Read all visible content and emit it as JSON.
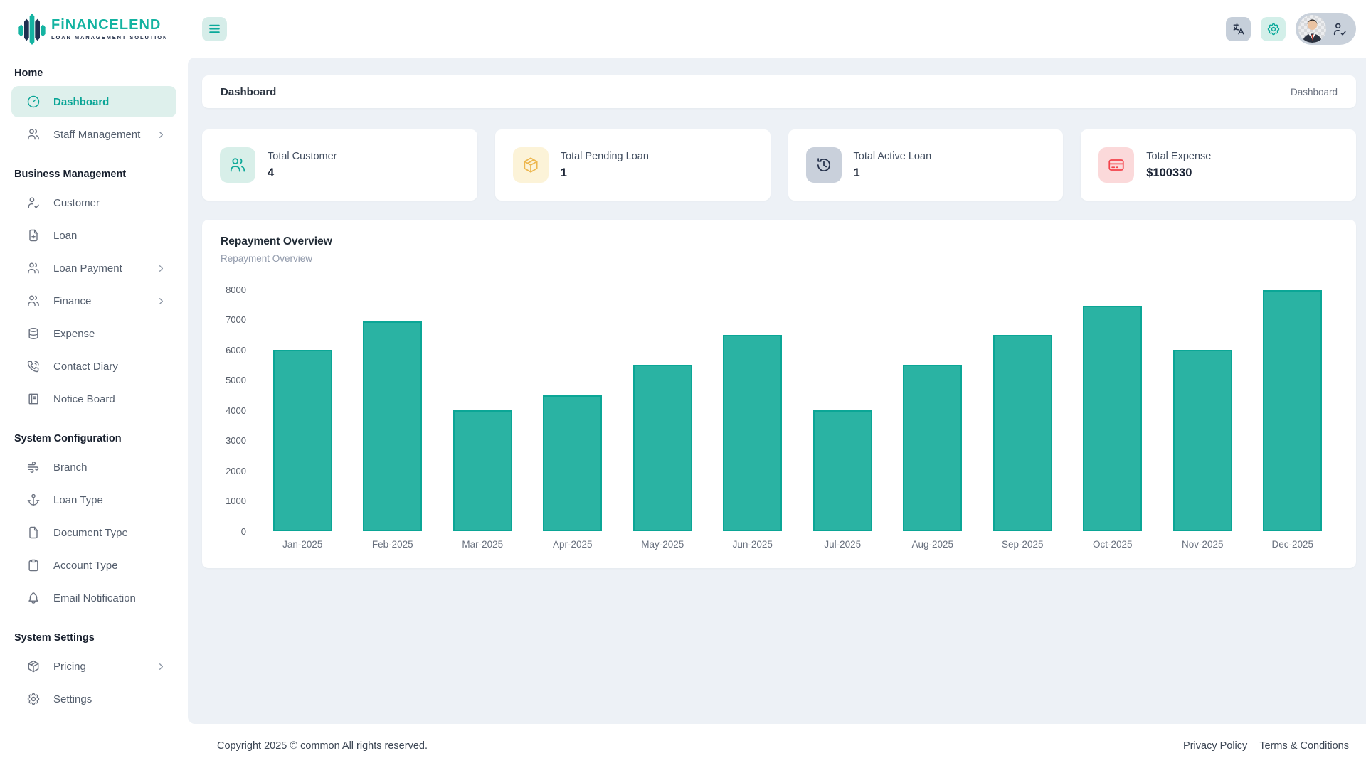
{
  "theme": {
    "accent": "#0aa99a",
    "accent_soft": "#d7eee9",
    "panel_bg": "#edf1f6",
    "navy": "#24304a",
    "bar_fill": "#2ab3a3",
    "bar_stroke": "#0ba696"
  },
  "brand": {
    "name": "FiNANCELEND",
    "tagline": "LOAN MANAGEMENT SOLUTION"
  },
  "sidebar": {
    "sections": [
      {
        "title": "Home",
        "items": [
          {
            "label": "Dashboard",
            "icon": "dashboard-icon",
            "active": true
          },
          {
            "label": "Staff Management",
            "icon": "users-icon",
            "chevron": true
          }
        ]
      },
      {
        "title": "Business Management",
        "items": [
          {
            "label": "Customer",
            "icon": "user-check-icon"
          },
          {
            "label": "Loan",
            "icon": "file-plus-icon"
          },
          {
            "label": "Loan Payment",
            "icon": "users-icon",
            "chevron": true
          },
          {
            "label": "Finance",
            "icon": "users-icon",
            "chevron": true
          },
          {
            "label": "Expense",
            "icon": "database-icon"
          },
          {
            "label": "Contact Diary",
            "icon": "phone-call-icon"
          },
          {
            "label": "Notice Board",
            "icon": "notebook-icon"
          }
        ]
      },
      {
        "title": "System Configuration",
        "items": [
          {
            "label": "Branch",
            "icon": "wind-icon"
          },
          {
            "label": "Loan Type",
            "icon": "anchor-icon"
          },
          {
            "label": "Document Type",
            "icon": "file-icon"
          },
          {
            "label": "Account Type",
            "icon": "clipboard-icon"
          },
          {
            "label": "Email Notification",
            "icon": "bell-icon"
          }
        ]
      },
      {
        "title": "System Settings",
        "items": [
          {
            "label": "Pricing",
            "icon": "package-icon",
            "chevron": true
          },
          {
            "label": "Settings",
            "icon": "gear-icon"
          }
        ]
      }
    ]
  },
  "page_header": {
    "title": "Dashboard",
    "breadcrumb": "Dashboard"
  },
  "stats": [
    {
      "label": "Total Customer",
      "value": "4",
      "icon": "users-icon",
      "icon_color": "#0fa999",
      "icon_bg": "#d8efe9"
    },
    {
      "label": "Total Pending Loan",
      "value": "1",
      "icon": "package-icon",
      "icon_color": "#edb74f",
      "icon_bg": "#fcf3d8"
    },
    {
      "label": "Total Active Loan",
      "value": "1",
      "icon": "history-icon",
      "icon_color": "#232f49",
      "icon_bg": "#c9d0db"
    },
    {
      "label": "Total Expense",
      "value": "$100330",
      "icon": "credit-card-icon",
      "icon_color": "#f4424b",
      "icon_bg": "#fbd9da"
    }
  ],
  "chart_data": {
    "type": "bar",
    "title": "Repayment Overview",
    "subtitle": "Repayment Overview",
    "categories": [
      "Jan-2025",
      "Feb-2025",
      "Mar-2025",
      "Apr-2025",
      "May-2025",
      "Jun-2025",
      "Jul-2025",
      "Aug-2025",
      "Sep-2025",
      "Oct-2025",
      "Nov-2025",
      "Dec-2025"
    ],
    "values": [
      6000,
      6950,
      4000,
      4500,
      5500,
      6500,
      4000,
      5500,
      6500,
      7450,
      6000,
      7980
    ],
    "ylim": [
      0,
      8000
    ],
    "yticks": [
      8000,
      7000,
      6000,
      5000,
      4000,
      3000,
      2000,
      1000,
      0
    ],
    "xlabel": "",
    "ylabel": "",
    "grid": false,
    "legend": false,
    "bar_color": "#2ab3a3",
    "bar_border": "#0ba696"
  },
  "footer": {
    "copyright": "Copyright 2025 © common All rights reserved.",
    "links": [
      "Privacy Policy",
      "Terms & Conditions"
    ]
  }
}
